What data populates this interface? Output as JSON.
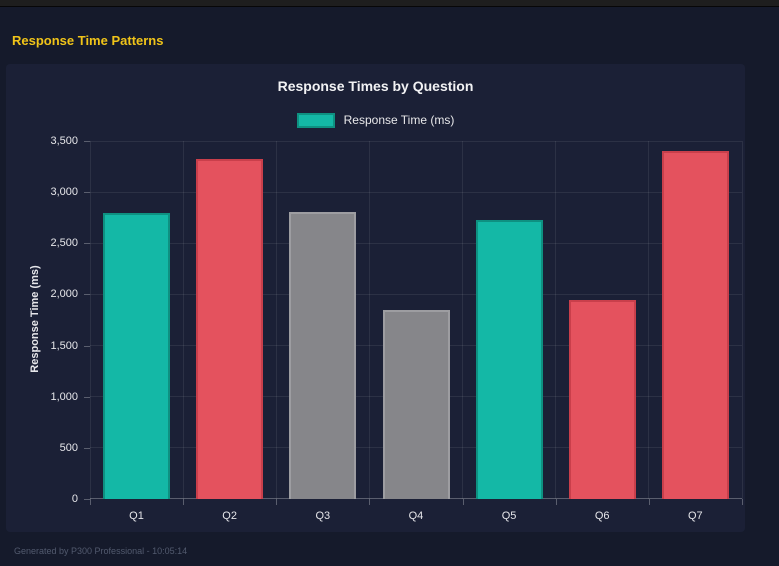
{
  "header": {
    "title": "Response Time Patterns"
  },
  "footer": {
    "text": "Generated by P300 Professional - 10:05:14"
  },
  "chart_data": {
    "type": "bar",
    "title": "Response Times by Question",
    "legend": {
      "label": "Response Time (ms)",
      "swatch_color": "#14b8a6",
      "position": "top"
    },
    "categories": [
      "Q1",
      "Q2",
      "Q3",
      "Q4",
      "Q5",
      "Q6",
      "Q7"
    ],
    "values": [
      2800,
      3320,
      2810,
      1850,
      2730,
      1950,
      3400
    ],
    "bar_colors": [
      "#14b8a6",
      "#e4525e",
      "#86868a",
      "#86868a",
      "#14b8a6",
      "#e4525e",
      "#e4525e"
    ],
    "bar_border_colors": [
      "#0e9181",
      "#c93f4b",
      "#9d9da1",
      "#9d9da1",
      "#0e9181",
      "#c93f4b",
      "#c93f4b"
    ],
    "xlabel": "",
    "ylabel": "Response Time (ms)",
    "ylim": [
      0,
      3500
    ],
    "ytick_step": 500,
    "ytick_labels": [
      "0",
      "500",
      "1,000",
      "1,500",
      "2,000",
      "2,500",
      "3,000",
      "3,500"
    ],
    "grid": true,
    "legend_position": "top"
  },
  "colors": {
    "page_bg": "#151a2b",
    "card_bg": "#1b2036",
    "topbar_bg": "#1e1e1e",
    "heading_yellow": "#f0c419",
    "title_white": "#f2f2f4",
    "tick_label": "#e6e6ea",
    "grid_line": "rgba(255,255,255,0.08)",
    "footer_text": "#525a6e",
    "teal": "#14b8a6",
    "red": "#e4525e",
    "gray": "#86868a"
  }
}
